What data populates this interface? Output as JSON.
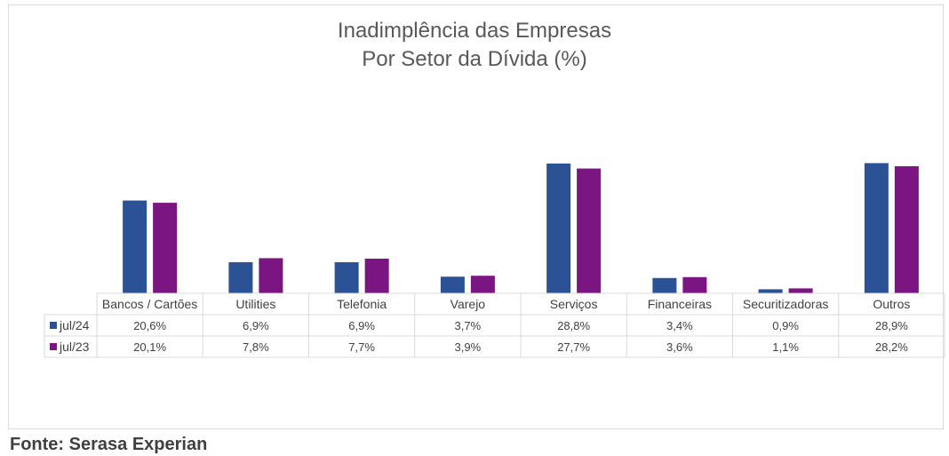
{
  "chart_data": {
    "type": "bar",
    "title": "Inadimplência das Empresas",
    "subtitle": "Por Setor da Dívida (%)",
    "categories": [
      "Bancos / Cartões",
      "Utilities",
      "Telefonia",
      "Varejo",
      "Serviços",
      "Financeiras",
      "Securitizadoras",
      "Outros"
    ],
    "series": [
      {
        "name": "jul/24",
        "color": "#2a5294",
        "values": [
          20.6,
          6.9,
          6.9,
          3.7,
          28.8,
          3.4,
          0.9,
          28.9
        ],
        "labels": [
          "20,6%",
          "6,9%",
          "6,9%",
          "3,7%",
          "28,8%",
          "3,4%",
          "0,9%",
          "28,9%"
        ]
      },
      {
        "name": "jul/23",
        "color": "#7b1581",
        "values": [
          20.1,
          7.8,
          7.7,
          3.9,
          27.7,
          3.6,
          1.1,
          28.2
        ],
        "labels": [
          "20,1%",
          "7,8%",
          "7,7%",
          "3,9%",
          "27,7%",
          "3,6%",
          "1,1%",
          "28,2%"
        ]
      }
    ],
    "ylim": [
      0,
      30
    ],
    "grid": false,
    "legend": "data-table"
  },
  "source": "Fonte: Serasa Experian"
}
